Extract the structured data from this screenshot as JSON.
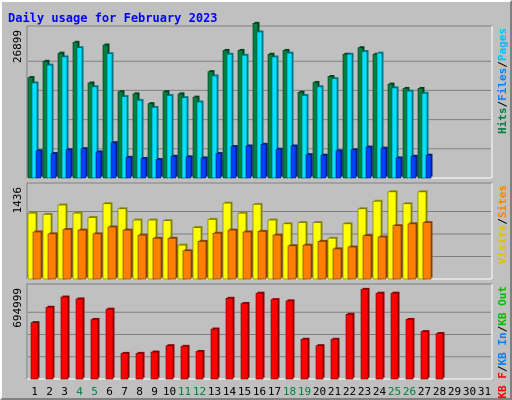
{
  "chart_data": {
    "type": "bar",
    "title": "Daily usage for February 2023",
    "days": [
      "1",
      "2",
      "3",
      "4",
      "5",
      "6",
      "7",
      "8",
      "9",
      "10",
      "11",
      "12",
      "13",
      "14",
      "15",
      "16",
      "17",
      "18",
      "19",
      "20",
      "21",
      "22",
      "23",
      "24",
      "25",
      "26",
      "27",
      "28",
      "29",
      "30",
      "31"
    ],
    "weekend_days": [
      4,
      5,
      11,
      12,
      18,
      19,
      25,
      26
    ],
    "colors": {
      "hits": "#008040",
      "files": "#00e0ff",
      "pages": "#0040ff",
      "visits": "#ffff00",
      "sites": "#ff8000",
      "kb_f": "#ff0000",
      "kb_in": "#0080ff",
      "kb_out": "#00c000",
      "weekday_label": "#000000",
      "weekend_label": "#008040"
    },
    "panels": [
      {
        "id": "hits-files-pages",
        "ymax": 26899,
        "ytick": "26899",
        "legend": [
          {
            "text": "Hits",
            "color": "#008040"
          },
          {
            "text": "/",
            "color": "#000000"
          },
          {
            "text": "Files",
            "color": "#0080ff"
          },
          {
            "text": "/",
            "color": "#000000"
          },
          {
            "text": "Pages",
            "color": "#00c0ff"
          }
        ],
        "series": [
          {
            "name": "Hits",
            "color": "#008040",
            "values": [
              18500,
              21500,
              23000,
              25000,
              17500,
              24500,
              15900,
              15500,
              13700,
              15900,
              15500,
              14900,
              19600,
              23500,
              23500,
              28500,
              22800,
              23500,
              15800,
              17600,
              18700,
              22800,
              24000,
              22800,
              17300,
              16500,
              16500,
              null,
              null,
              null,
              null
            ]
          },
          {
            "name": "Files",
            "color": "#00e0ff",
            "values": [
              17500,
              20800,
              22300,
              24000,
              16800,
              22900,
              15000,
              14300,
              13000,
              15200,
              14800,
              14000,
              18800,
              22800,
              22600,
              26900,
              22300,
              23000,
              15200,
              16800,
              18300,
              22800,
              23300,
              23000,
              16600,
              16000,
              15600,
              null,
              null,
              null,
              null
            ]
          },
          {
            "name": "Pages",
            "color": "#0040ff",
            "values": [
              5000,
              4500,
              5200,
              5400,
              4800,
              6500,
              3800,
              3600,
              3400,
              4000,
              3900,
              3700,
              4500,
              5800,
              5900,
              6200,
              5300,
              5900,
              4300,
              4200,
              5000,
              5200,
              5700,
              5500,
              3700,
              4000,
              4200,
              null,
              null,
              null,
              null
            ]
          }
        ]
      },
      {
        "id": "visits-sites",
        "ymax": 1436,
        "ytick": "1436",
        "legend": [
          {
            "text": "Visits",
            "color": "#e0c000"
          },
          {
            "text": "/",
            "color": "#000000"
          },
          {
            "text": "Sites",
            "color": "#ff8000"
          }
        ],
        "series": [
          {
            "name": "Visits",
            "color": "#ffff00",
            "values": [
              1050,
              1030,
              1180,
              1050,
              980,
              1200,
              1120,
              940,
              940,
              930,
              540,
              820,
              950,
              1210,
              1050,
              1190,
              940,
              880,
              900,
              900,
              650,
              880,
              1120,
              1240,
              1390,
              1200,
              1390,
              null,
              null,
              null,
              null
            ]
          },
          {
            "name": "Sites",
            "color": "#ff8000",
            "values": [
              750,
              720,
              790,
              780,
              720,
              830,
              780,
              700,
              650,
              650,
              450,
              600,
              730,
              780,
              750,
              760,
              700,
              530,
              540,
              600,
              480,
              510,
              690,
              670,
              850,
              880,
              900,
              null,
              null,
              null,
              null
            ]
          }
        ]
      },
      {
        "id": "kbytes",
        "ymax": 694999,
        "ytick": "694999",
        "legend": [
          {
            "text": "KB F",
            "color": "#ff0000"
          },
          {
            "text": "/",
            "color": "#000000"
          },
          {
            "text": "KB In",
            "color": "#0080ff"
          },
          {
            "text": "/",
            "color": "#000000"
          },
          {
            "text": "KB Out",
            "color": "#00c000"
          }
        ],
        "series": [
          {
            "name": "KB F",
            "color": "#ff0000",
            "values": [
              440000,
              560000,
              640000,
              625000,
              465000,
              545000,
              200000,
              200000,
              210000,
              260000,
              255000,
              215000,
              390000,
              630000,
              590000,
              670000,
              620000,
              610000,
              310000,
              260000,
              310000,
              505000,
              700000,
              670000,
              670000,
              465000,
              370000,
              355000,
              null,
              null,
              null
            ]
          }
        ]
      }
    ]
  }
}
